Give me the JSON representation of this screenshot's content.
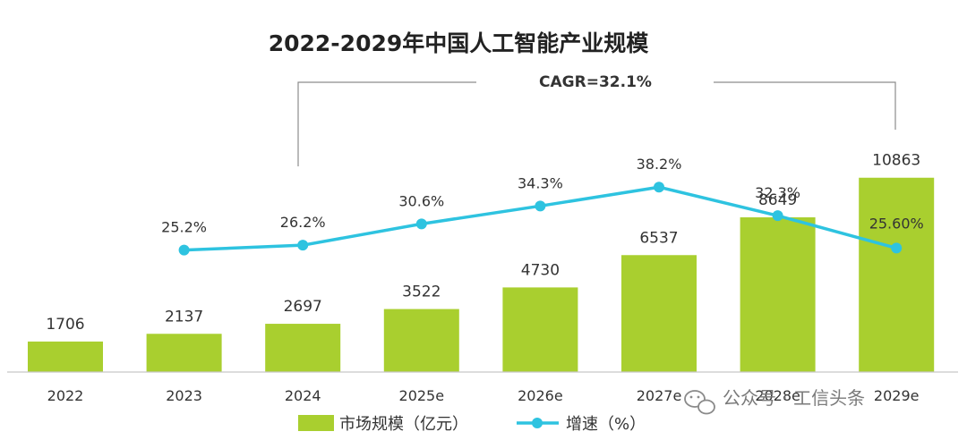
{
  "chart_data": {
    "type": "bar",
    "title": "2022-2029年中国人工智能产业规模",
    "annotation": "CAGR=32.1%",
    "categories": [
      "2022",
      "2023",
      "2024",
      "2025e",
      "2026e",
      "2027e",
      "2028e",
      "2029e"
    ],
    "series": [
      {
        "name": "市场规模（亿元）",
        "type": "bar",
        "color": "#a9cf2f",
        "values": [
          1706,
          2137,
          2697,
          3522,
          4730,
          6537,
          8649,
          10863
        ],
        "labels": [
          "1706",
          "2137",
          "2697",
          "3522",
          "4730",
          "6537",
          "8649",
          "10863"
        ]
      },
      {
        "name": "增速（%）",
        "type": "line",
        "color": "#2ec3e0",
        "values": [
          null,
          25.2,
          26.2,
          30.6,
          34.3,
          38.2,
          32.3,
          25.6
        ],
        "labels": [
          "",
          "25.2%",
          "26.2%",
          "30.6%",
          "34.3%",
          "38.2%",
          "32.3%",
          "25.60%"
        ]
      }
    ],
    "ylim": [
      0,
      11000
    ],
    "rate_ylim": [
      0,
      75
    ],
    "grid": false,
    "legend": "bottom-center"
  },
  "watermark": {
    "text": "公众号 · 工信头条",
    "icon": "wechat-icon"
  }
}
